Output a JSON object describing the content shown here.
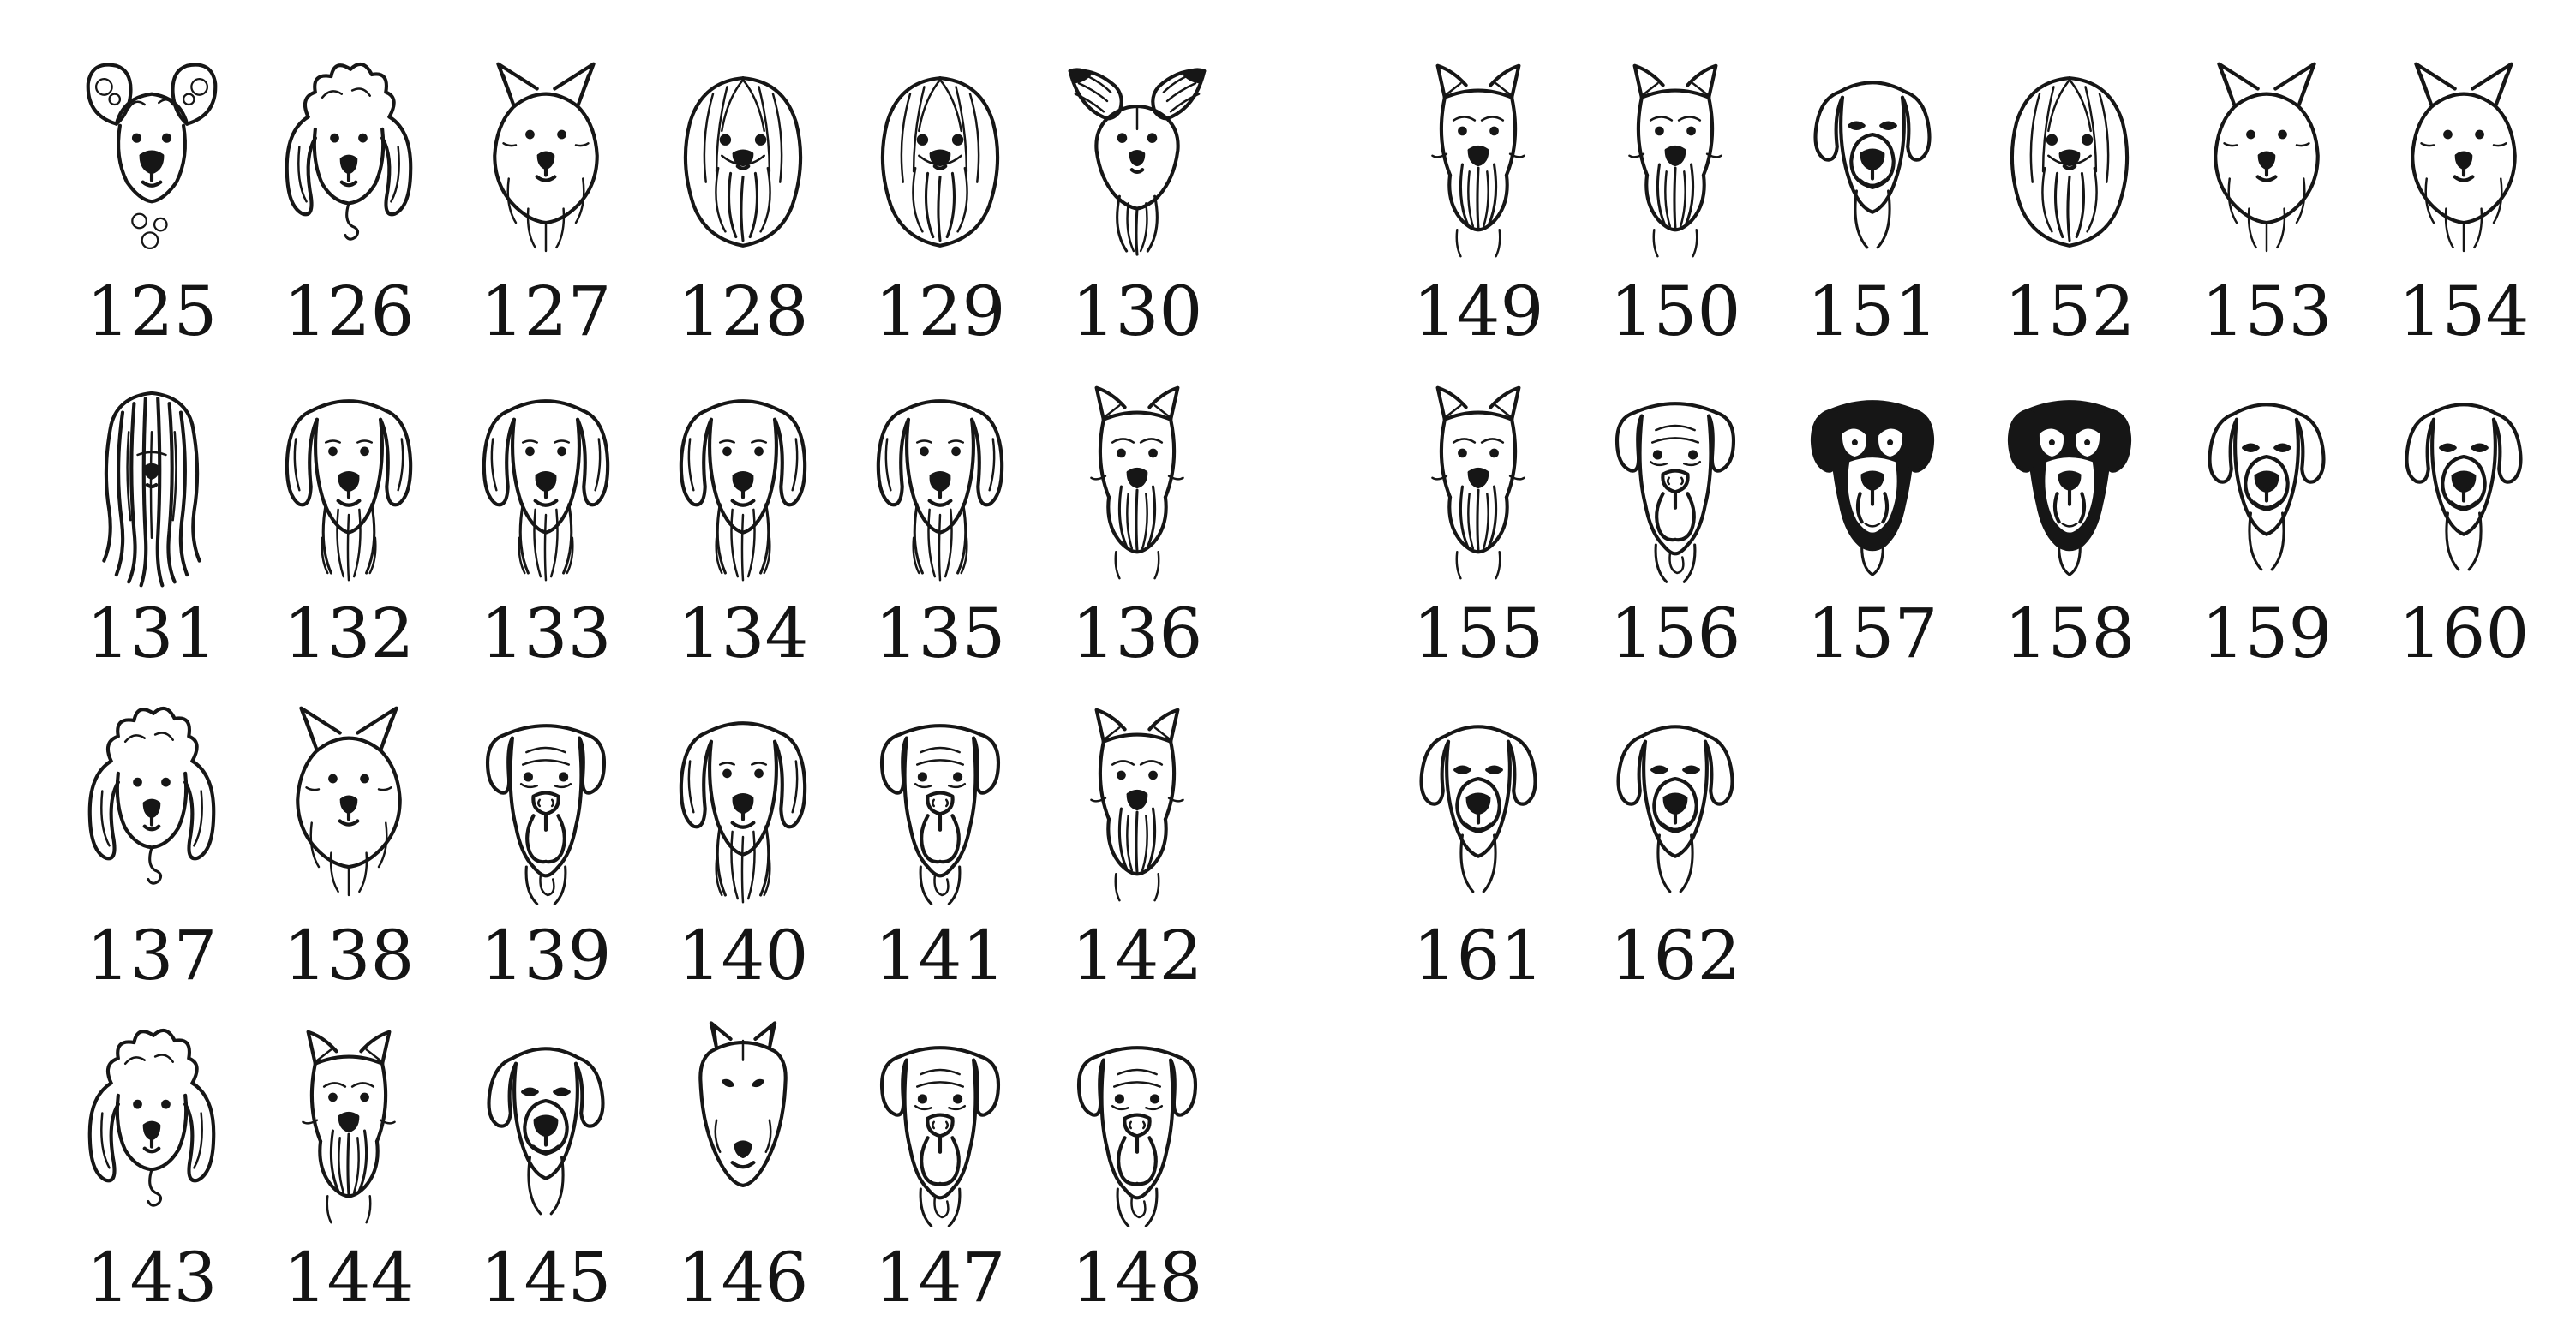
{
  "canvas": {
    "background": "#ffffff",
    "ink": "#141414"
  },
  "sheet_type": "numbered line-art dog portrait catalog",
  "groups": [
    {
      "name": "left",
      "columns": 6,
      "items": [
        {
          "number": "125",
          "icon": "toy-poodle-line-art-icon",
          "art": "toy-poodle"
        },
        {
          "number": "126",
          "icon": "poodle-line-art-icon",
          "art": "poodle"
        },
        {
          "number": "127",
          "icon": "sheltie-line-art-icon",
          "art": "spitz"
        },
        {
          "number": "128",
          "icon": "pekingese-line-art-icon",
          "art": "peke"
        },
        {
          "number": "129",
          "icon": "pekingese-line-art-icon",
          "art": "peke"
        },
        {
          "number": "130",
          "icon": "papillon-line-art-icon",
          "art": "papillon"
        },
        {
          "number": "131",
          "icon": "puli-line-art-icon",
          "art": "puli"
        },
        {
          "number": "132",
          "icon": "setter-line-art-icon",
          "art": "retriever"
        },
        {
          "number": "133",
          "icon": "sheepdog-line-art-icon",
          "art": "retriever"
        },
        {
          "number": "134",
          "icon": "leonberger-line-art-icon",
          "art": "retriever"
        },
        {
          "number": "135",
          "icon": "golden-retriever-line-art-icon",
          "art": "retriever"
        },
        {
          "number": "136",
          "icon": "wiry-terrier-line-art-icon",
          "art": "terrier"
        },
        {
          "number": "137",
          "icon": "poodle-line-art-icon",
          "art": "poodle"
        },
        {
          "number": "138",
          "icon": "rough-collie-line-art-icon",
          "art": "spitz"
        },
        {
          "number": "139",
          "icon": "leonberger-line-art-icon",
          "art": "mastiff"
        },
        {
          "number": "140",
          "icon": "golden-retriever-line-art-icon",
          "art": "retriever"
        },
        {
          "number": "141",
          "icon": "mastiff-line-art-icon",
          "art": "mastiff"
        },
        {
          "number": "142",
          "icon": "schnauzer-line-art-icon",
          "art": "terrier"
        },
        {
          "number": "143",
          "icon": "poodle-line-art-icon",
          "art": "poodle"
        },
        {
          "number": "144",
          "icon": "schnauzer-line-art-icon",
          "art": "terrier"
        },
        {
          "number": "145",
          "icon": "jack-russell-line-art-icon",
          "art": "smooth"
        },
        {
          "number": "146",
          "icon": "bull-terrier-line-art-icon",
          "art": "bullterrier"
        },
        {
          "number": "147",
          "icon": "mastiff-line-art-icon",
          "art": "mastiff"
        },
        {
          "number": "148",
          "icon": "mastiff-line-art-icon",
          "art": "mastiff"
        }
      ]
    },
    {
      "name": "right",
      "columns": 6,
      "items": [
        {
          "number": "149",
          "icon": "yorkshire-terrier-line-art-icon",
          "art": "terrier"
        },
        {
          "number": "150",
          "icon": "wire-fox-terrier-line-art-icon",
          "art": "terrier"
        },
        {
          "number": "151",
          "icon": "rottweiler-line-art-icon",
          "art": "smooth"
        },
        {
          "number": "152",
          "icon": "maltese-line-art-icon",
          "art": "peke"
        },
        {
          "number": "153",
          "icon": "westie-line-art-icon",
          "art": "spitz"
        },
        {
          "number": "154",
          "icon": "samoyed-line-art-icon",
          "art": "spitz"
        },
        {
          "number": "155",
          "icon": "wirehaired-griffon-line-art-icon",
          "art": "terrier"
        },
        {
          "number": "156",
          "icon": "saint-bernard-line-art-icon",
          "art": "mastiff"
        },
        {
          "number": "157",
          "icon": "rottweiler-dark-line-art-icon",
          "art": "rott-dark"
        },
        {
          "number": "158",
          "icon": "rottweiler-dark-line-art-icon",
          "art": "rott-dark"
        },
        {
          "number": "159",
          "icon": "great-dane-line-art-icon",
          "art": "smooth"
        },
        {
          "number": "160",
          "icon": "great-dane-line-art-icon",
          "art": "smooth"
        },
        {
          "number": "161",
          "icon": "labrador-line-art-icon",
          "art": "smooth"
        },
        {
          "number": "162",
          "icon": "vizsla-line-art-icon",
          "art": "smooth"
        }
      ]
    }
  ]
}
